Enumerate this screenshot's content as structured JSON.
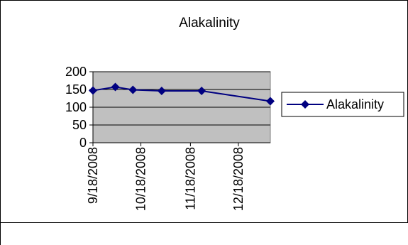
{
  "chart_data": {
    "type": "line",
    "title": "Alakalinity",
    "xlabel": "",
    "ylabel": "",
    "x_tick_labels": [
      "9/18/2008",
      "10/18/2008",
      "11/18/2008",
      "12/18/2008"
    ],
    "x_tick_dates": [
      "2008-09-18",
      "2008-10-18",
      "2008-11-18",
      "2008-12-18"
    ],
    "ylim": [
      0,
      200
    ],
    "y_ticks": [
      0,
      50,
      100,
      150,
      200
    ],
    "grid": true,
    "legend_position": "right",
    "series": [
      {
        "name": "Alakalinity",
        "color": "#000080",
        "marker": "diamond",
        "points": [
          {
            "x": "2008-09-18",
            "y": 147
          },
          {
            "x": "2008-10-02",
            "y": 157
          },
          {
            "x": "2008-10-13",
            "y": 149
          },
          {
            "x": "2008-10-31",
            "y": 146
          },
          {
            "x": "2008-11-25",
            "y": 146
          },
          {
            "x": "2009-01-07",
            "y": 117
          }
        ]
      }
    ]
  }
}
